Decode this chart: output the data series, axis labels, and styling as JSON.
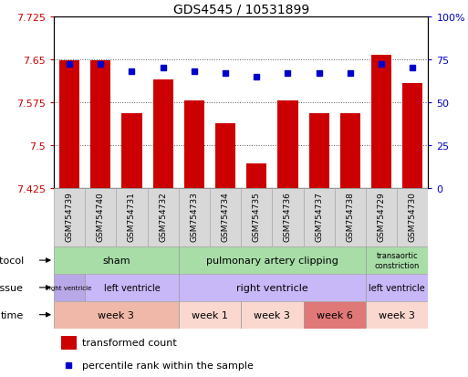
{
  "title": "GDS4545 / 10531899",
  "samples": [
    "GSM754739",
    "GSM754740",
    "GSM754731",
    "GSM754732",
    "GSM754733",
    "GSM754734",
    "GSM754735",
    "GSM754736",
    "GSM754737",
    "GSM754738",
    "GSM754729",
    "GSM754730"
  ],
  "bar_values": [
    7.648,
    7.648,
    7.555,
    7.615,
    7.578,
    7.538,
    7.468,
    7.578,
    7.555,
    7.555,
    7.658,
    7.608
  ],
  "percentile_values": [
    72,
    72,
    68,
    70,
    68,
    67,
    65,
    67,
    67,
    67,
    72,
    70
  ],
  "ymin": 7.425,
  "ymax": 7.725,
  "yticks": [
    7.425,
    7.5,
    7.575,
    7.65,
    7.725
  ],
  "ytick_labels": [
    "7.425",
    "7.5",
    "7.575",
    "7.65",
    "7.725"
  ],
  "right_yticks": [
    0,
    25,
    50,
    75,
    100
  ],
  "right_ytick_labels": [
    "0",
    "25",
    "50",
    "75",
    "100%"
  ],
  "bar_color": "#cc0000",
  "dot_color": "#0000cc",
  "protocol_row": {
    "label": "protocol",
    "segments": [
      {
        "text": "sham",
        "start": 0,
        "end": 4,
        "color": "#a8dda8",
        "fontsize": 8
      },
      {
        "text": "pulmonary artery clipping",
        "start": 4,
        "end": 10,
        "color": "#a8dda8",
        "fontsize": 8
      },
      {
        "text": "transaortic\nconstriction",
        "start": 10,
        "end": 12,
        "color": "#a8dda8",
        "fontsize": 6
      }
    ]
  },
  "tissue_row": {
    "label": "tissue",
    "segments": [
      {
        "text": "right ventricle",
        "start": 0,
        "end": 1,
        "color": "#b8a8e8",
        "fontsize": 5
      },
      {
        "text": "left ventricle",
        "start": 1,
        "end": 4,
        "color": "#c8b8f8",
        "fontsize": 7
      },
      {
        "text": "right ventricle",
        "start": 4,
        "end": 10,
        "color": "#c8b8f8",
        "fontsize": 8
      },
      {
        "text": "left ventricle",
        "start": 10,
        "end": 12,
        "color": "#c8b8f8",
        "fontsize": 7
      }
    ]
  },
  "time_row": {
    "label": "time",
    "segments": [
      {
        "text": "week 3",
        "start": 0,
        "end": 4,
        "color": "#f0b8a8",
        "fontsize": 8
      },
      {
        "text": "week 1",
        "start": 4,
        "end": 6,
        "color": "#fad8d0",
        "fontsize": 8
      },
      {
        "text": "week 3",
        "start": 6,
        "end": 8,
        "color": "#fad8d0",
        "fontsize": 8
      },
      {
        "text": "week 6",
        "start": 8,
        "end": 10,
        "color": "#e07878",
        "fontsize": 8
      },
      {
        "text": "week 3",
        "start": 10,
        "end": 12,
        "color": "#fad8d0",
        "fontsize": 8
      }
    ]
  },
  "grid_color": "#555555",
  "label_box_color": "#d8d8d8",
  "label_box_edge_color": "#aaaaaa"
}
